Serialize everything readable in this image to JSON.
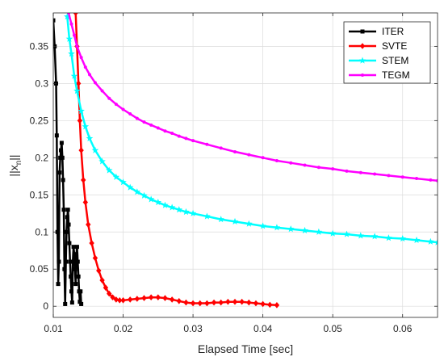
{
  "chart_data": {
    "type": "line",
    "title": "",
    "xlabel": "Elapsed Time [sec]",
    "ylabel": "||x",
    "ylabel_sub": "n",
    "ylabel_suffix": "||",
    "xlim": [
      0.01,
      0.065
    ],
    "ylim": [
      -0.015,
      0.395
    ],
    "xticks": [
      0.01,
      0.02,
      0.03,
      0.04,
      0.05,
      0.06
    ],
    "xtick_labels": [
      "0.01",
      "0.02",
      "0.03",
      "0.04",
      "0.05",
      "0.06"
    ],
    "yticks": [
      0,
      0.05,
      0.1,
      0.15,
      0.2,
      0.25,
      0.3,
      0.35
    ],
    "ytick_labels": [
      "0",
      "0.05",
      "0.1",
      "0.15",
      "0.2",
      "0.25",
      "0.3",
      "0.35"
    ],
    "grid": true,
    "legend_position": "top-right",
    "series": [
      {
        "name": "ITER",
        "color": "#000000",
        "marker": "square",
        "x": [
          0.01,
          0.0102,
          0.0104,
          0.0105,
          0.0106,
          0.0107,
          0.0108,
          0.0109,
          0.011,
          0.0111,
          0.0112,
          0.0113,
          0.0114,
          0.0115,
          0.0116,
          0.0117,
          0.0118,
          0.0119,
          0.012,
          0.0121,
          0.0122,
          0.0123,
          0.0124,
          0.0125,
          0.0126,
          0.0127,
          0.0128,
          0.0129,
          0.013,
          0.0131,
          0.0132,
          0.0133,
          0.0134,
          0.0135,
          0.0136,
          0.0137,
          0.0138,
          0.0139,
          0.014
        ],
        "y": [
          0.385,
          0.35,
          0.3,
          0.23,
          0.1,
          0.03,
          0.06,
          0.18,
          0.2,
          0.21,
          0.22,
          0.2,
          0.17,
          0.13,
          0.05,
          0.003,
          0.06,
          0.1,
          0.12,
          0.13,
          0.11,
          0.085,
          0.06,
          0.04,
          0.02,
          0.005,
          0.06,
          0.08,
          0.07,
          0.05,
          0.03,
          0.07,
          0.08,
          0.06,
          0.04,
          0.02,
          0.006,
          0.02,
          0.003
        ]
      },
      {
        "name": "SVTE",
        "color": "#ff0000",
        "marker": "diamond",
        "x": [
          0.0132,
          0.0134,
          0.0136,
          0.0138,
          0.014,
          0.0143,
          0.0146,
          0.015,
          0.0155,
          0.016,
          0.0165,
          0.017,
          0.0175,
          0.018,
          0.0185,
          0.019,
          0.0195,
          0.02,
          0.021,
          0.022,
          0.023,
          0.024,
          0.025,
          0.026,
          0.027,
          0.028,
          0.029,
          0.03,
          0.031,
          0.032,
          0.033,
          0.034,
          0.035,
          0.036,
          0.037,
          0.038,
          0.039,
          0.04,
          0.041,
          0.042
        ],
        "y": [
          0.395,
          0.35,
          0.3,
          0.25,
          0.21,
          0.17,
          0.14,
          0.11,
          0.085,
          0.065,
          0.048,
          0.035,
          0.025,
          0.017,
          0.012,
          0.009,
          0.008,
          0.008,
          0.009,
          0.01,
          0.011,
          0.012,
          0.012,
          0.011,
          0.009,
          0.007,
          0.005,
          0.004,
          0.004,
          0.004,
          0.005,
          0.005,
          0.006,
          0.006,
          0.006,
          0.005,
          0.004,
          0.003,
          0.002,
          0.0015
        ]
      },
      {
        "name": "STEM",
        "color": "#00ffff",
        "marker": "star",
        "x": [
          0.012,
          0.0123,
          0.0126,
          0.013,
          0.0134,
          0.014,
          0.0146,
          0.0152,
          0.016,
          0.017,
          0.018,
          0.019,
          0.02,
          0.021,
          0.022,
          0.023,
          0.024,
          0.025,
          0.026,
          0.027,
          0.028,
          0.029,
          0.03,
          0.032,
          0.034,
          0.036,
          0.038,
          0.04,
          0.042,
          0.044,
          0.046,
          0.048,
          0.05,
          0.052,
          0.054,
          0.056,
          0.058,
          0.06,
          0.062,
          0.064,
          0.065
        ],
        "y": [
          0.39,
          0.36,
          0.34,
          0.31,
          0.29,
          0.263,
          0.242,
          0.226,
          0.21,
          0.195,
          0.183,
          0.174,
          0.167,
          0.16,
          0.154,
          0.149,
          0.144,
          0.14,
          0.136,
          0.133,
          0.13,
          0.127,
          0.125,
          0.121,
          0.117,
          0.114,
          0.111,
          0.108,
          0.106,
          0.104,
          0.102,
          0.1,
          0.098,
          0.097,
          0.095,
          0.094,
          0.092,
          0.091,
          0.089,
          0.087,
          0.086
        ]
      },
      {
        "name": "TEGM",
        "color": "#ff00ff",
        "marker": "dot",
        "x": [
          0.0122,
          0.0126,
          0.013,
          0.0134,
          0.014,
          0.0146,
          0.0152,
          0.016,
          0.017,
          0.018,
          0.019,
          0.02,
          0.021,
          0.022,
          0.023,
          0.024,
          0.025,
          0.026,
          0.027,
          0.028,
          0.029,
          0.03,
          0.032,
          0.034,
          0.036,
          0.038,
          0.04,
          0.042,
          0.044,
          0.046,
          0.048,
          0.05,
          0.052,
          0.054,
          0.056,
          0.058,
          0.06,
          0.062,
          0.064,
          0.065
        ],
        "y": [
          0.395,
          0.38,
          0.365,
          0.35,
          0.335,
          0.322,
          0.312,
          0.301,
          0.29,
          0.28,
          0.272,
          0.265,
          0.259,
          0.253,
          0.248,
          0.244,
          0.24,
          0.236,
          0.233,
          0.229,
          0.226,
          0.223,
          0.218,
          0.213,
          0.208,
          0.204,
          0.2,
          0.196,
          0.193,
          0.19,
          0.187,
          0.185,
          0.182,
          0.18,
          0.178,
          0.176,
          0.174,
          0.172,
          0.17,
          0.169
        ]
      }
    ]
  }
}
